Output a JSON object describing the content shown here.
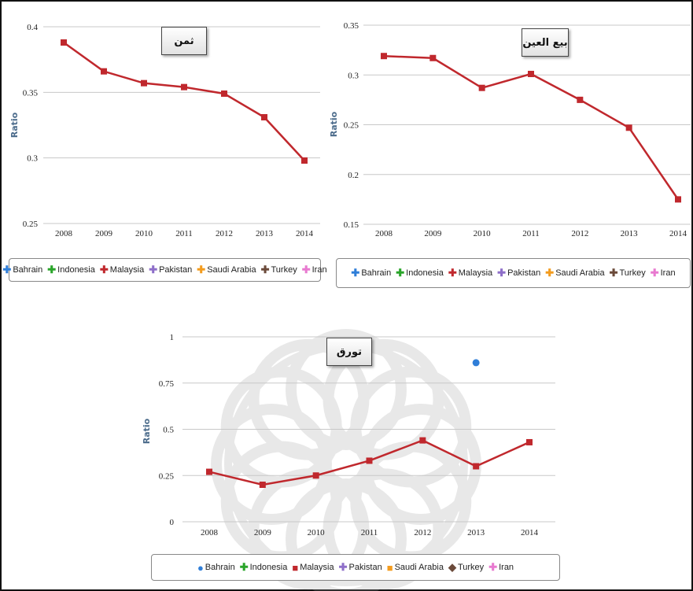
{
  "colors": {
    "Bahrain": "#2f7ed8",
    "Indonesia": "#2aa52a",
    "Malaysia": "#c0282d",
    "Pakistan": "#8e6fc9",
    "Saudi Arabia": "#f39c1f",
    "Turkey": "#6b4a3a",
    "Iran": "#e87ad0",
    "watermark": "#9a9a9a"
  },
  "chart_data": [
    {
      "type": "line",
      "title": "ثمن",
      "ylabel": "Ratio",
      "categories": [
        "2008",
        "2009",
        "2010",
        "2011",
        "2012",
        "2013",
        "2014"
      ],
      "ylim": [
        0.25,
        0.4
      ],
      "yticks": [
        "0.25",
        "0.3",
        "0.35",
        "0.4"
      ],
      "grid": true,
      "legend_position": "bottom",
      "series": [
        {
          "name": "Malaysia",
          "values": [
            0.388,
            0.366,
            0.357,
            0.354,
            0.349,
            0.331,
            0.298
          ]
        }
      ],
      "legend": [
        {
          "name": "Bahrain",
          "marker": "✚"
        },
        {
          "name": "Indonesia",
          "marker": "✚"
        },
        {
          "name": "Malaysia",
          "marker": "✚"
        },
        {
          "name": "Pakistan",
          "marker": "✚"
        },
        {
          "name": "Saudi Arabia",
          "marker": "✚"
        },
        {
          "name": "Turkey",
          "marker": "✚"
        },
        {
          "name": "Iran",
          "marker": "✚"
        }
      ]
    },
    {
      "type": "line",
      "title": "بيع العين",
      "ylabel": "Ratio",
      "categories": [
        "2008",
        "2009",
        "2010",
        "2011",
        "2012",
        "2013",
        "2014"
      ],
      "ylim": [
        0.15,
        0.35
      ],
      "yticks": [
        "0.15",
        "0.2",
        "0.25",
        "0.3",
        "0.35"
      ],
      "grid": true,
      "legend_position": "bottom",
      "series": [
        {
          "name": "Malaysia",
          "values": [
            0.319,
            0.317,
            0.287,
            0.301,
            0.275,
            0.247,
            0.175
          ]
        }
      ],
      "legend": [
        {
          "name": "Bahrain",
          "marker": "✚"
        },
        {
          "name": "Indonesia",
          "marker": "✚"
        },
        {
          "name": "Malaysia",
          "marker": "✚"
        },
        {
          "name": "Pakistan",
          "marker": "✚"
        },
        {
          "name": "Saudi Arabia",
          "marker": "✚"
        },
        {
          "name": "Turkey",
          "marker": "✚"
        },
        {
          "name": "Iran",
          "marker": "✚"
        }
      ]
    },
    {
      "type": "line",
      "title": "تورق",
      "ylabel": "Ratio",
      "categories": [
        "2008",
        "2009",
        "2010",
        "2011",
        "2012",
        "2013",
        "2014"
      ],
      "ylim": [
        0,
        1
      ],
      "yticks": [
        "0",
        "0.25",
        "0.5",
        "0.75",
        "1"
      ],
      "grid": true,
      "legend_position": "bottom",
      "series": [
        {
          "name": "Malaysia",
          "values": [
            0.27,
            0.2,
            0.25,
            0.33,
            0.44,
            0.3,
            0.43
          ]
        },
        {
          "name": "Bahrain",
          "points": [
            {
              "x": "2013",
              "y": 0.86
            }
          ]
        }
      ],
      "legend": [
        {
          "name": "Bahrain",
          "marker": "●"
        },
        {
          "name": "Indonesia",
          "marker": "✚"
        },
        {
          "name": "Malaysia",
          "marker": "■"
        },
        {
          "name": "Pakistan",
          "marker": "✚"
        },
        {
          "name": "Saudi Arabia",
          "marker": "■"
        },
        {
          "name": "Turkey",
          "marker": "◆"
        },
        {
          "name": "Iran",
          "marker": "✚"
        }
      ]
    }
  ]
}
